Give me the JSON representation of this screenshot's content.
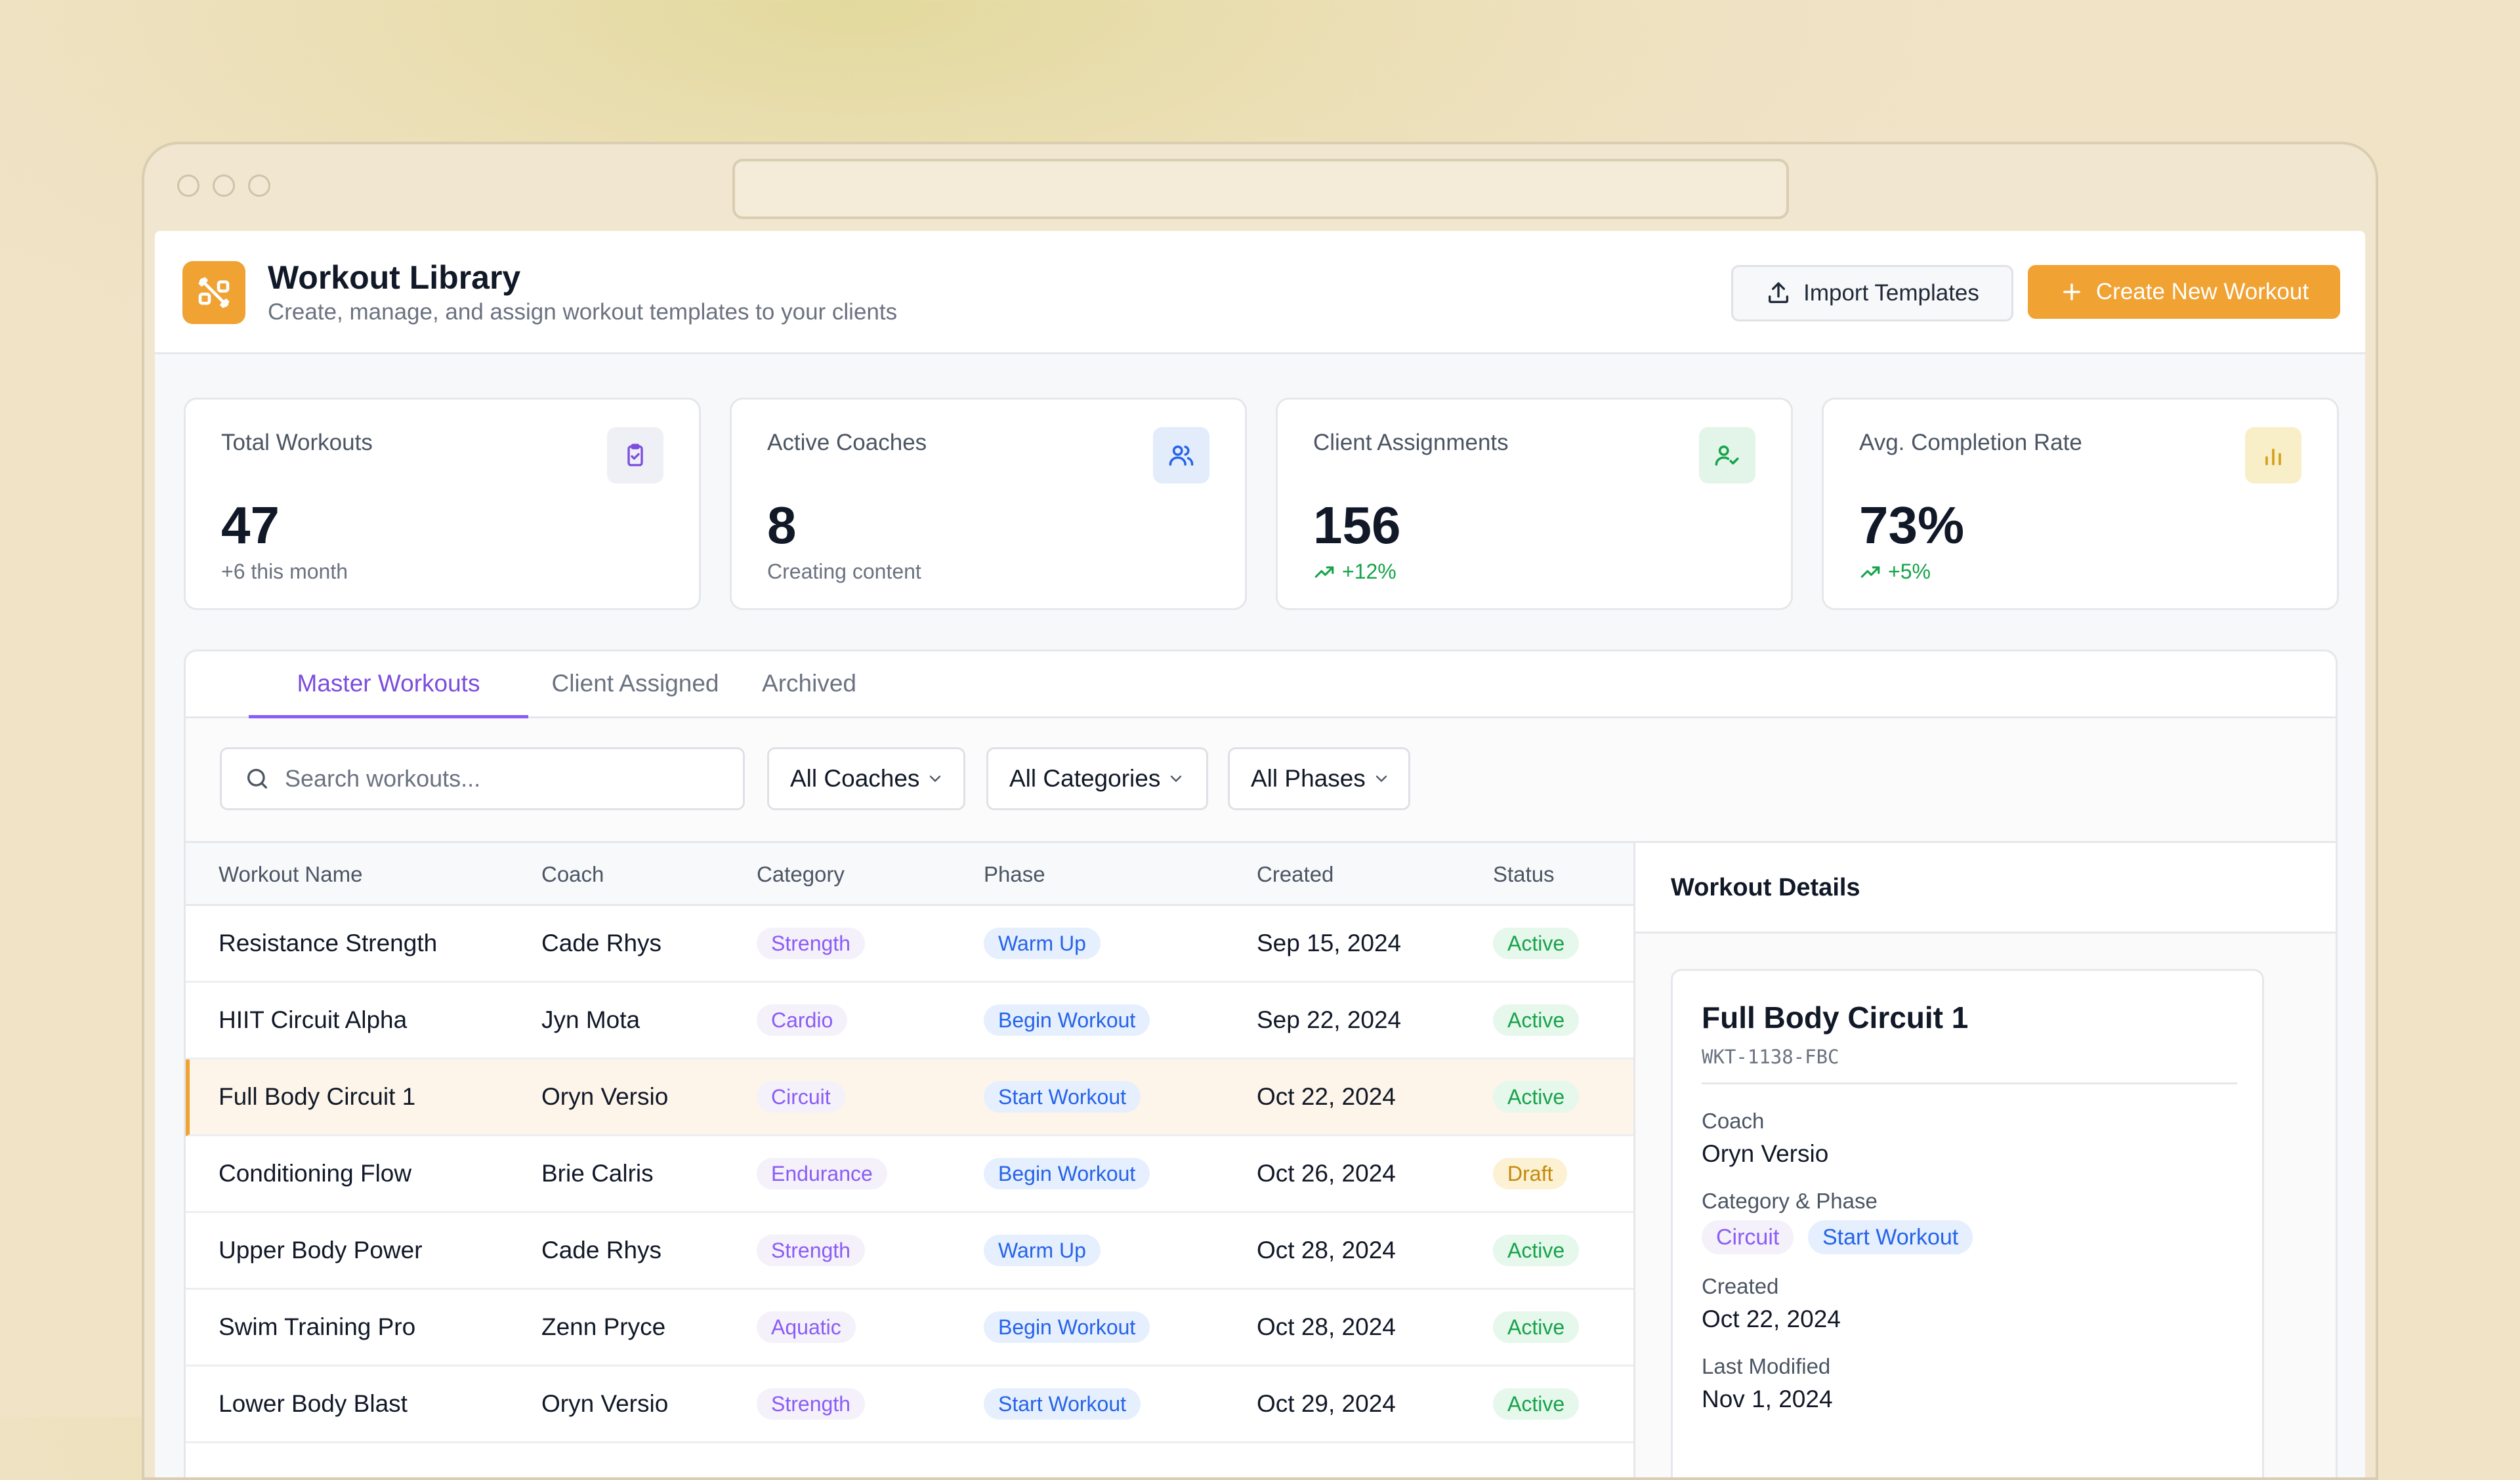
{
  "app": {
    "title": "Workout Library",
    "subtitle": "Create, manage, and assign workout templates to your clients",
    "logo_icon": "dumbbell-icon"
  },
  "actions": {
    "import_label": "Import Templates",
    "create_label": "Create New Workout"
  },
  "stats": [
    {
      "label": "Total Workouts",
      "value": "47",
      "sub": "+6 this month",
      "icon": "clipboard-check-icon",
      "trend": false
    },
    {
      "label": "Active Coaches",
      "value": "8",
      "sub": "Creating content",
      "icon": "users-icon",
      "trend": false
    },
    {
      "label": "Client Assignments",
      "value": "156",
      "sub": "+12%",
      "icon": "user-check-icon",
      "trend": true
    },
    {
      "label": "Avg. Completion Rate",
      "value": "73%",
      "sub": "+5%",
      "icon": "bar-chart-icon",
      "trend": true
    }
  ],
  "tabs": [
    {
      "label": "Master Workouts",
      "active": true
    },
    {
      "label": "Client Assigned",
      "active": false
    },
    {
      "label": "Archived",
      "active": false
    }
  ],
  "filters": {
    "search_placeholder": "Search workouts...",
    "coach": "All Coaches",
    "category": "All Categories",
    "phase": "All Phases"
  },
  "table": {
    "headers": [
      "Workout Name",
      "Coach",
      "Category",
      "Phase",
      "Created",
      "Status"
    ],
    "rows": [
      {
        "name": "Resistance Strength",
        "coach": "Cade Rhys",
        "category": "Strength",
        "phase": "Warm Up",
        "created": "Sep 15, 2024",
        "status": "Active"
      },
      {
        "name": "HIIT Circuit Alpha",
        "coach": "Jyn Mota",
        "category": "Cardio",
        "phase": "Begin Workout",
        "created": "Sep 22, 2024",
        "status": "Active"
      },
      {
        "name": "Full Body Circuit 1",
        "coach": "Oryn Versio",
        "category": "Circuit",
        "phase": "Start Workout",
        "created": "Oct 22, 2024",
        "status": "Active",
        "selected": true
      },
      {
        "name": "Conditioning Flow",
        "coach": "Brie Calris",
        "category": "Endurance",
        "phase": "Begin Workout",
        "created": "Oct 26, 2024",
        "status": "Draft"
      },
      {
        "name": "Upper Body Power",
        "coach": "Cade Rhys",
        "category": "Strength",
        "phase": "Warm Up",
        "created": "Oct 28, 2024",
        "status": "Active"
      },
      {
        "name": "Swim Training Pro",
        "coach": "Zenn Pryce",
        "category": "Aquatic",
        "phase": "Begin Workout",
        "created": "Oct 28, 2024",
        "status": "Active"
      },
      {
        "name": "Lower Body Blast",
        "coach": "Oryn Versio",
        "category": "Strength",
        "phase": "Start Workout",
        "created": "Oct 29, 2024",
        "status": "Active"
      }
    ]
  },
  "details": {
    "heading": "Workout Details",
    "name": "Full Body Circuit 1",
    "id": "WKT-1138-FBC",
    "coach_label": "Coach",
    "coach": "Oryn Versio",
    "catphase_label": "Category & Phase",
    "category": "Circuit",
    "phase": "Start Workout",
    "created_label": "Created",
    "created": "Oct 22, 2024",
    "modified_label": "Last Modified",
    "modified": "Nov 1, 2024"
  },
  "colors": {
    "accent": "#f0a233",
    "tab_active": "#8b5cf6",
    "category_text": "#8b5cf6",
    "phase_text": "#2563eb",
    "active_text": "#16a34a",
    "draft_text": "#c48a0b"
  }
}
